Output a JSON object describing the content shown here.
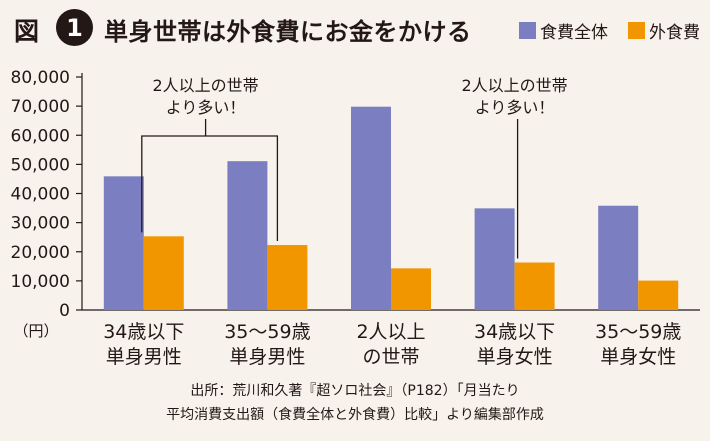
{
  "header": {
    "fig_label": "図",
    "fig_number": "1",
    "title": "単身世帯は外食費にお金をかける"
  },
  "legend": {
    "items": [
      {
        "label": "食費全体",
        "color": "#7b7fc1"
      },
      {
        "label": "外食費",
        "color": "#f29600"
      }
    ]
  },
  "chart_data": {
    "type": "bar",
    "categories": [
      [
        "34歳以下",
        "単身男性"
      ],
      [
        "35〜59歳",
        "単身男性"
      ],
      [
        "2人以上",
        "の世帯"
      ],
      [
        "34歳以下",
        "単身女性"
      ],
      [
        "35〜59歳",
        "単身女性"
      ]
    ],
    "series": [
      {
        "name": "食費全体",
        "color": "#7b7fc1",
        "values": [
          45900,
          51100,
          69800,
          34900,
          35800
        ]
      },
      {
        "name": "外食費",
        "color": "#f29600",
        "values": [
          25300,
          22300,
          14300,
          16300,
          10100
        ]
      }
    ],
    "ylim": [
      0,
      80000
    ],
    "yticks": [
      "0",
      "10,000",
      "20,000",
      "30,000",
      "40,000",
      "50,000",
      "60,000",
      "70,000",
      "80,000"
    ],
    "y_unit": "（円）",
    "annotations": [
      {
        "lines": [
          "2人以上の世帯",
          "より多い！"
        ]
      },
      {
        "lines": [
          "2人以上の世帯",
          "より多い！"
        ]
      }
    ]
  },
  "source": {
    "line1": "出所：荒川和久著『超ソロ社会』（P182）「月当たり",
    "line2": "平均消費支出額（食費全体と外食費）比較」より編集部作成"
  }
}
